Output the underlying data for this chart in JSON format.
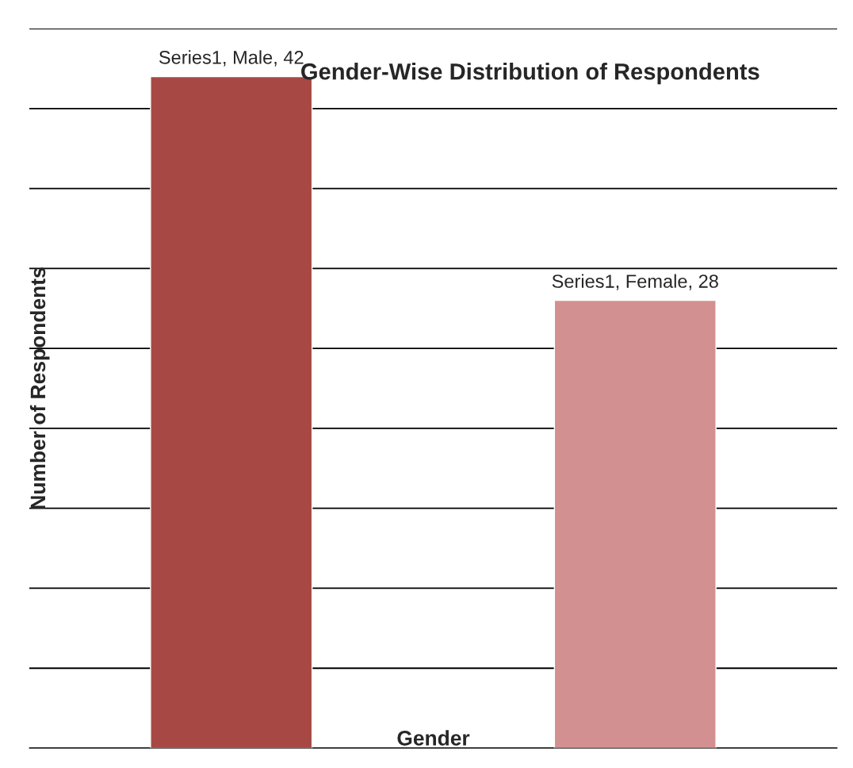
{
  "chart_data": {
    "type": "bar",
    "title": "Gender-Wise Distribution of Respondents",
    "xlabel": "Gender",
    "ylabel": "Number of Respondents",
    "categories": [
      null,
      null
    ],
    "values": [
      42,
      28
    ],
    "colors": [
      "#a84844",
      "#d29190"
    ],
    "value_labels": [
      "Series1, Male, 42",
      "Series1, Female, 28"
    ],
    "ylim": [
      0,
      45
    ],
    "yticks": [
      {
        "value": 0,
        "label": null
      },
      {
        "value": 5,
        "label": null
      },
      {
        "value": 10,
        "label": null
      },
      {
        "value": 15,
        "label": null
      },
      {
        "value": 20,
        "label": null
      },
      {
        "value": 25,
        "label": null
      },
      {
        "value": 30,
        "label": null
      },
      {
        "value": 35,
        "label": null
      },
      {
        "value": 40,
        "label": null
      },
      {
        "value": 45,
        "label": null
      }
    ],
    "grid": "y"
  }
}
